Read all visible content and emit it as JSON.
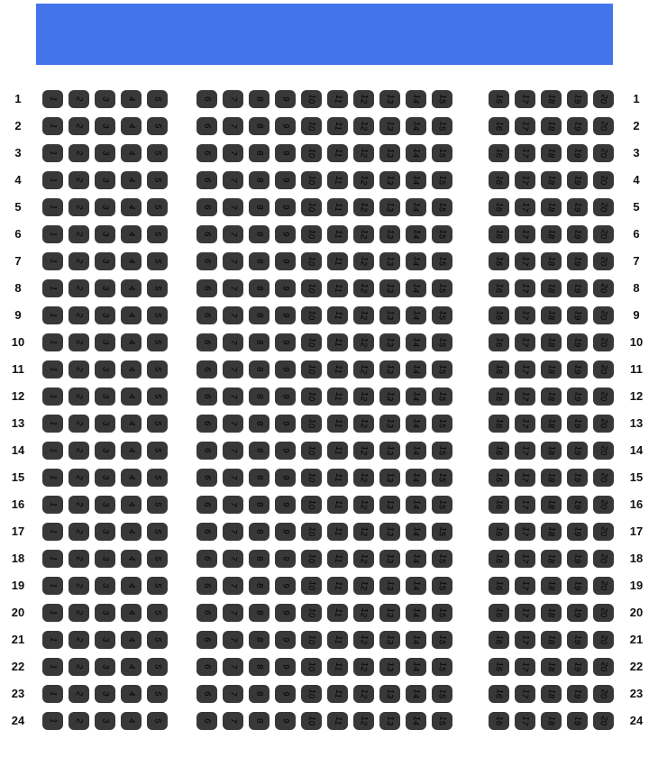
{
  "header": {
    "banner_color": "#4374ec",
    "banner_text": ""
  },
  "seat_map": {
    "row_labels": [
      "1",
      "2",
      "3",
      "4",
      "5",
      "6",
      "7",
      "8",
      "9",
      "10",
      "11",
      "12",
      "13",
      "14",
      "15",
      "16",
      "17",
      "18",
      "19",
      "20",
      "21",
      "22",
      "23",
      "24"
    ],
    "groups": [
      {
        "name": "left-block",
        "seats": [
          "1",
          "2",
          "3",
          "4",
          "5"
        ]
      },
      {
        "name": "middle-block",
        "seats": [
          "6",
          "7",
          "8",
          "9",
          "10",
          "11",
          "12",
          "13",
          "14",
          "15"
        ]
      },
      {
        "name": "right-block",
        "seats": [
          "16",
          "17",
          "18",
          "19",
          "20"
        ]
      }
    ],
    "colors": {
      "seat_fill": "#383838",
      "seat_text": "#000000",
      "row_label_text": "#111111"
    }
  }
}
